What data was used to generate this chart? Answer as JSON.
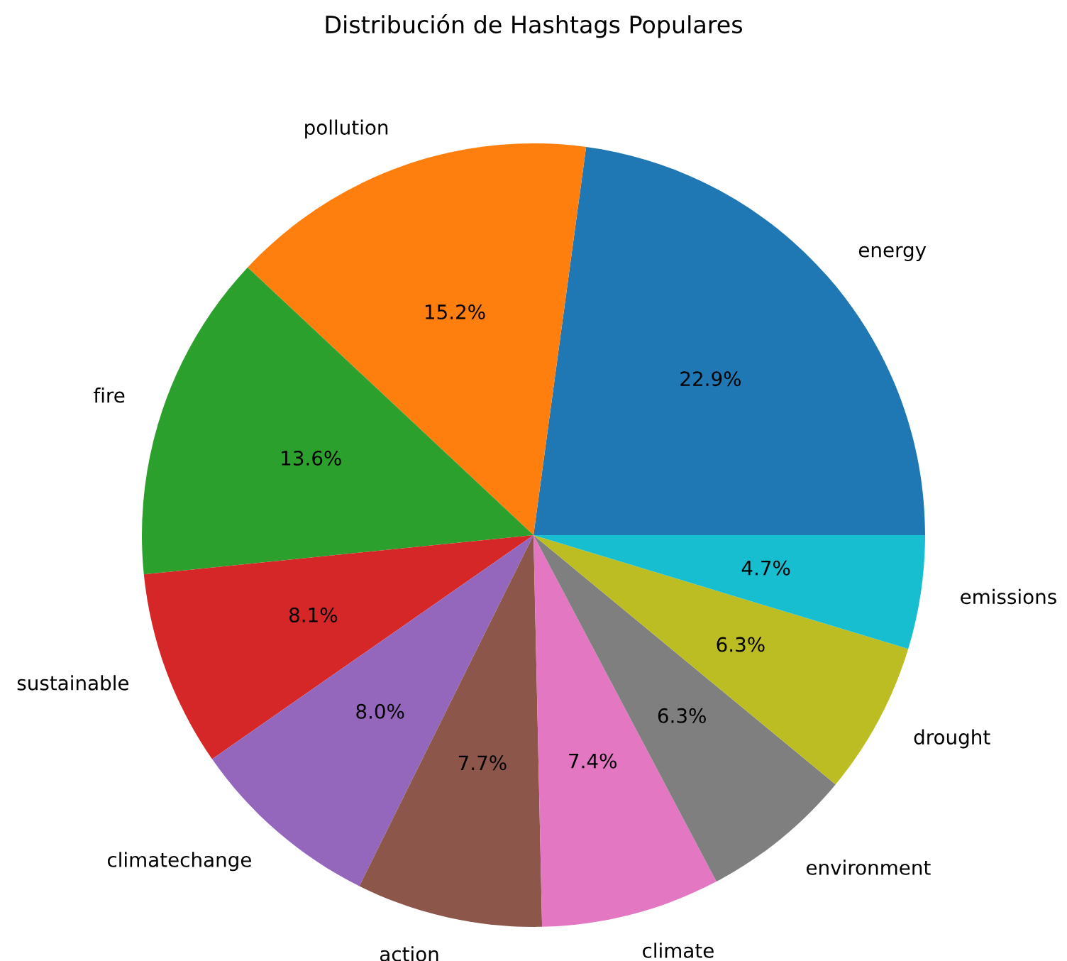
{
  "chart_data": {
    "type": "pie",
    "title": "Distribución de Hashtags Populares",
    "categories": [
      "energy",
      "pollution",
      "fire",
      "sustainable",
      "climatechange",
      "action",
      "climate",
      "environment",
      "drought",
      "emissions"
    ],
    "values": [
      22.9,
      15.2,
      13.6,
      8.1,
      8.0,
      7.7,
      7.4,
      6.3,
      6.3,
      4.7
    ],
    "value_labels": [
      "22.9%",
      "15.2%",
      "13.6%",
      "8.1%",
      "8.0%",
      "7.7%",
      "7.4%",
      "6.3%",
      "6.3%",
      "4.7%"
    ],
    "colors": [
      "#1f77b4",
      "#ff7f0e",
      "#2ca02c",
      "#d62728",
      "#9467bd",
      "#8c564b",
      "#e377c2",
      "#7f7f7f",
      "#bcbd22",
      "#17becf"
    ],
    "legend": false
  }
}
